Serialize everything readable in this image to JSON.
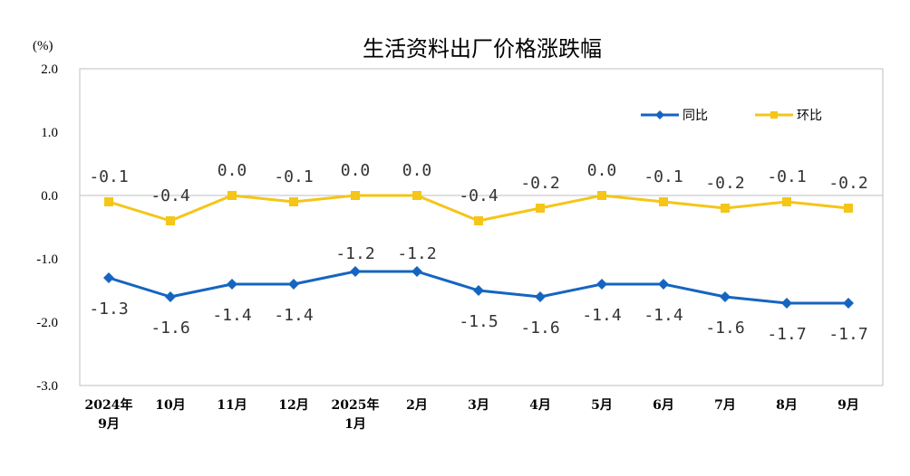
{
  "chart_data": {
    "type": "line",
    "title": "生活资料出厂价格涨跌幅",
    "unit_label": "(%)",
    "ylim": [
      -3.0,
      2.0
    ],
    "yticks": [
      2.0,
      1.0,
      0.0,
      -1.0,
      -2.0,
      -3.0
    ],
    "ytick_labels": [
      "2.0",
      "1.0",
      "0.0",
      "-1.0",
      "-2.0",
      "-3.0"
    ],
    "categories": [
      [
        "2024年",
        "9月"
      ],
      [
        "10月"
      ],
      [
        "11月"
      ],
      [
        "12月"
      ],
      [
        "2025年",
        "1月"
      ],
      [
        "2月"
      ],
      [
        "3月"
      ],
      [
        "4月"
      ],
      [
        "5月"
      ],
      [
        "6月"
      ],
      [
        "7月"
      ],
      [
        "8月"
      ],
      [
        "9月"
      ]
    ],
    "series": [
      {
        "name": "同比",
        "color": "#1565C0",
        "marker": "diamond",
        "values": [
          -1.3,
          -1.6,
          -1.4,
          -1.4,
          -1.2,
          -1.2,
          -1.5,
          -1.6,
          -1.4,
          -1.4,
          -1.6,
          -1.7,
          -1.7
        ],
        "labels": [
          "-1.3",
          "-1.6",
          "-1.4",
          "-1.4",
          "-1.2",
          "-1.2",
          "-1.5",
          "-1.6",
          "-1.4",
          "-1.4",
          "-1.6",
          "-1.7",
          "-1.7"
        ]
      },
      {
        "name": "环比",
        "color": "#F5C518",
        "marker": "square",
        "values": [
          -0.1,
          -0.4,
          0.0,
          -0.1,
          0.0,
          0.0,
          -0.4,
          -0.2,
          0.0,
          -0.1,
          -0.2,
          -0.1,
          -0.2
        ],
        "labels": [
          "-0.1",
          "-0.4",
          "0.0",
          "-0.1",
          "0.0",
          "0.0",
          "-0.4",
          "-0.2",
          "0.0",
          "-0.1",
          "-0.2",
          "-0.1",
          "-0.2"
        ]
      }
    ],
    "legend_position": "top-right",
    "grid": false,
    "zero_line": true
  }
}
